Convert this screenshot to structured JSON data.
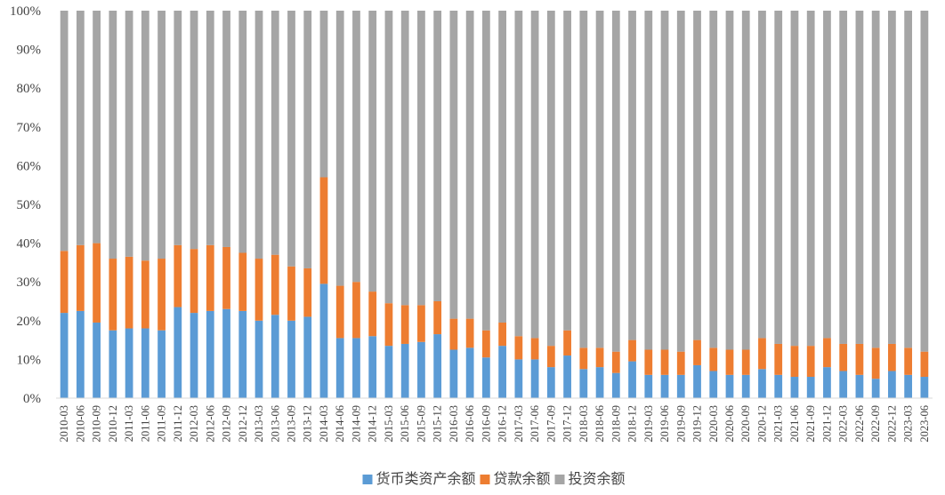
{
  "chart_data": {
    "type": "bar",
    "stacked": true,
    "percent_stacked": true,
    "title": "",
    "xlabel": "",
    "ylabel": "",
    "ylim": [
      0,
      100
    ],
    "y_tick_labels": [
      "0%",
      "10%",
      "20%",
      "30%",
      "40%",
      "50%",
      "60%",
      "70%",
      "80%",
      "90%",
      "100%"
    ],
    "legend_position": "bottom",
    "grid": false,
    "categories": [
      "2010-03",
      "2010-06",
      "2010-09",
      "2010-12",
      "2011-03",
      "2011-06",
      "2011-09",
      "2011-12",
      "2012-03",
      "2012-06",
      "2012-09",
      "2012-12",
      "2013-03",
      "2013-06",
      "2013-09",
      "2013-12",
      "2014-03",
      "2014-06",
      "2014-09",
      "2014-12",
      "2015-03",
      "2015-06",
      "2015-09",
      "2015-12",
      "2016-03",
      "2016-06",
      "2016-09",
      "2016-12",
      "2017-03",
      "2017-06",
      "2017-09",
      "2017-12",
      "2018-03",
      "2018-06",
      "2018-09",
      "2018-12",
      "2019-03",
      "2019-06",
      "2019-09",
      "2019-12",
      "2020-03",
      "2020-06",
      "2020-09",
      "2020-12",
      "2021-03",
      "2021-06",
      "2021-09",
      "2021-12",
      "2022-03",
      "2022-06",
      "2022-09",
      "2022-12",
      "2023-03",
      "2023-06"
    ],
    "series": [
      {
        "name": "货币类资产余额",
        "color": "#5B9BD5",
        "values": [
          22,
          22.5,
          19.5,
          17.5,
          18,
          18,
          17.5,
          23.5,
          22,
          22.5,
          23,
          22.5,
          20,
          21.5,
          20,
          21,
          29.5,
          15.5,
          15.5,
          16,
          13.5,
          14,
          14.5,
          16.5,
          12.5,
          13,
          10.5,
          13.5,
          10,
          10,
          8,
          11,
          7.5,
          8,
          6.5,
          9.5,
          6,
          6,
          6,
          8.5,
          7,
          6,
          6,
          7.5,
          6,
          5.5,
          5.5,
          8,
          7,
          6,
          5,
          7,
          6,
          5.5
        ]
      },
      {
        "name": "贷款余额",
        "color": "#ED7D31",
        "values": [
          16,
          17,
          20.5,
          18.5,
          18.5,
          17.5,
          18.5,
          16,
          16.5,
          17,
          16,
          15,
          16,
          15.5,
          14,
          12.5,
          27.5,
          13.5,
          14.5,
          11.5,
          11,
          10,
          9.5,
          8.5,
          8,
          7.5,
          7,
          6,
          6,
          5.5,
          5.5,
          6.5,
          5.5,
          5,
          5.5,
          5.5,
          6.5,
          6.5,
          6,
          6.5,
          6,
          6.5,
          6.5,
          8,
          8,
          8,
          8,
          7.5,
          7,
          8,
          8,
          7,
          7,
          6.5
        ]
      },
      {
        "name": "投资余额",
        "color": "#A5A5A5",
        "values": [
          62,
          60.5,
          60,
          64,
          63.5,
          64.5,
          64,
          60.5,
          61.5,
          60.5,
          61,
          62.5,
          64,
          63,
          66,
          66.5,
          43,
          71,
          70,
          72.5,
          75.5,
          76,
          76,
          75,
          79.5,
          79.5,
          82.5,
          80.5,
          84,
          84.5,
          86.5,
          82.5,
          87,
          87,
          88,
          85,
          87.5,
          87.5,
          88,
          85,
          87,
          87.5,
          87.5,
          84.5,
          86,
          86.5,
          86.5,
          84.5,
          86,
          86,
          87,
          86,
          87,
          88
        ]
      }
    ]
  }
}
